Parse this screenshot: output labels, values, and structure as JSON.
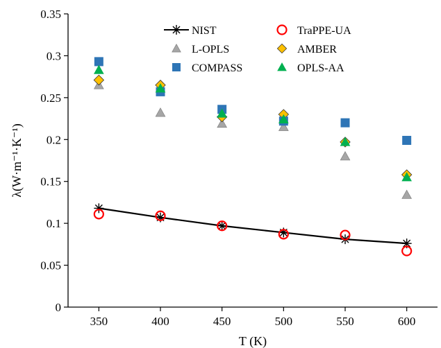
{
  "chart_data": {
    "type": "scatter",
    "xlabel": "T (K)",
    "ylabel": "λ(W·m⁻¹·K⁻¹)",
    "x": [
      350,
      400,
      450,
      500,
      550,
      600
    ],
    "xlim": [
      325,
      625
    ],
    "ylim": [
      0,
      0.35
    ],
    "x_ticks": [
      "350",
      "400",
      "450",
      "500",
      "550",
      "600"
    ],
    "y_ticks": [
      "0",
      "0.05",
      "0.1",
      "0.15",
      "0.2",
      "0.25",
      "0.3",
      "0.35"
    ],
    "grid": false,
    "legend_placement": "top-center",
    "series": [
      {
        "name": "NIST",
        "marker": "asterisk",
        "line": true,
        "color": "#000000",
        "values": [
          0.118,
          0.107,
          0.097,
          0.089,
          0.081,
          0.076
        ]
      },
      {
        "name": "TraPPE-UA",
        "marker": "open-circle",
        "line": false,
        "color": "#ff0000",
        "values": [
          0.111,
          0.109,
          0.097,
          0.087,
          0.086,
          0.067
        ]
      },
      {
        "name": "L-OPLS",
        "marker": "triangle",
        "line": false,
        "color": "#a6a6a6",
        "values": [
          0.265,
          0.232,
          0.219,
          0.215,
          0.18,
          0.134
        ]
      },
      {
        "name": "AMBER",
        "marker": "diamond",
        "line": false,
        "color": "#ffc000",
        "values": [
          0.271,
          0.265,
          0.227,
          0.23,
          0.197,
          0.158
        ]
      },
      {
        "name": "COMPASS",
        "marker": "square",
        "line": false,
        "color": "#2e75b6",
        "values": [
          0.293,
          0.257,
          0.236,
          0.222,
          0.22,
          0.199
        ]
      },
      {
        "name": "OPLS-AA",
        "marker": "triangle",
        "line": false,
        "color": "#00b050",
        "values": [
          0.283,
          0.261,
          0.231,
          0.224,
          0.197,
          0.155
        ]
      }
    ]
  }
}
